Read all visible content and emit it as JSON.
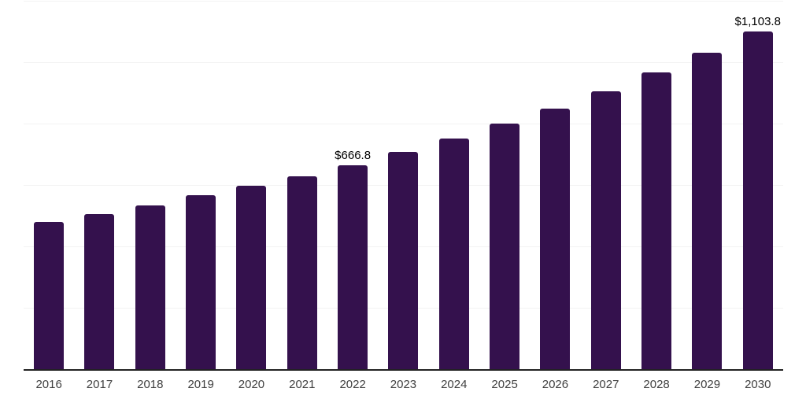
{
  "chart_data": {
    "type": "bar",
    "title": "",
    "categories": [
      "2016",
      "2017",
      "2018",
      "2019",
      "2020",
      "2021",
      "2022",
      "2023",
      "2024",
      "2025",
      "2026",
      "2027",
      "2028",
      "2029",
      "2030"
    ],
    "values": [
      481,
      508,
      536,
      568,
      600,
      630,
      666.8,
      710,
      754,
      802,
      852,
      908,
      970,
      1034,
      1103.8
    ],
    "annotations": [
      {
        "category": "2022",
        "label": "$666.8"
      },
      {
        "category": "2030",
        "label": "$1,103.8"
      }
    ],
    "xlabel": "",
    "ylabel": "",
    "ylim": [
      0,
      1200
    ],
    "gridline_step": 200,
    "grid": "horizontal",
    "legend": "none",
    "colors": {
      "bar": "#34114d",
      "gridline": "#f3f3f3",
      "axis_line": "#222222",
      "tick_label": "#404040",
      "annotation": "#000000",
      "background": "#ffffff"
    }
  }
}
